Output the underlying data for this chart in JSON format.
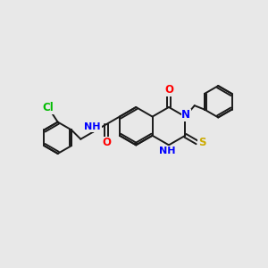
{
  "background_color": "#e8e8e8",
  "bond_color": "#1a1a1a",
  "bond_width": 1.4,
  "atom_colors": {
    "N": "#0000ff",
    "O": "#ff0000",
    "S": "#ccaa00",
    "Cl": "#00bb00",
    "H": "#888888"
  },
  "font_size": 8.5,
  "fig_size": [
    3.0,
    3.0
  ],
  "dpi": 100
}
